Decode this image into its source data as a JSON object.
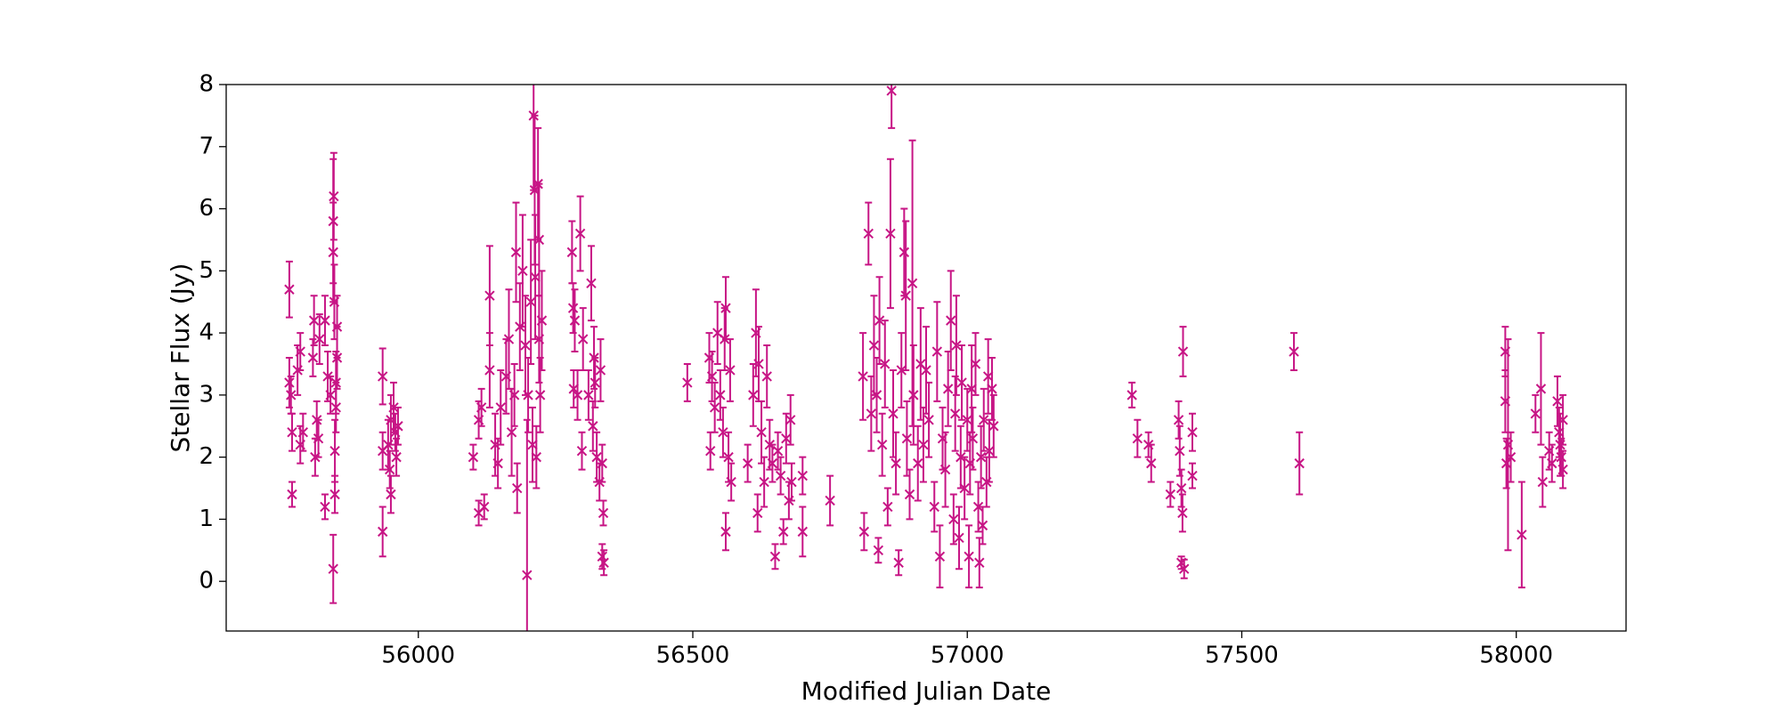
{
  "chart_data": {
    "type": "scatter",
    "xlabel": "Modified Julian Date",
    "ylabel": "Stellar Flux (Jy)",
    "color": "#c71585",
    "marker": "x",
    "grid": false,
    "xlim": [
      55650,
      58200
    ],
    "ylim": [
      -0.8,
      8
    ],
    "xticks": [
      56000,
      56500,
      57000,
      57500,
      58000
    ],
    "yticks": [
      0,
      1,
      2,
      3,
      4,
      5,
      6,
      7,
      8
    ],
    "x": [
      55765,
      55765,
      55768,
      55770,
      55770,
      55780,
      55785,
      55785,
      55790,
      55808,
      55810,
      55812,
      55815,
      55818,
      55820,
      55830,
      55830,
      55835,
      55840,
      55845,
      55846,
      55845,
      55847,
      55848,
      55848,
      55845,
      55850,
      55852,
      55850,
      55852,
      55935,
      55935,
      55935,
      55945,
      55948,
      55950,
      55950,
      55955,
      55958,
      55960,
      55963,
      56100,
      56110,
      56110,
      56115,
      56120,
      56130,
      56130,
      56140,
      56145,
      56150,
      56160,
      56165,
      56170,
      56175,
      56178,
      56180,
      56185,
      56190,
      56195,
      56198,
      56200,
      56205,
      56208,
      56210,
      56212,
      56213,
      56215,
      56218,
      56220,
      56220,
      56222,
      56225,
      56280,
      56282,
      56283,
      56285,
      56290,
      56295,
      56298,
      56300,
      56310,
      56315,
      56318,
      56320,
      56322,
      56325,
      56330,
      56332,
      56335,
      56335,
      56337,
      56338,
      56490,
      56530,
      56532,
      56535,
      56540,
      56545,
      56550,
      56555,
      56558,
      56560,
      56560,
      56565,
      56568,
      56570,
      56600,
      56610,
      56615,
      56618,
      56620,
      56625,
      56630,
      56635,
      56640,
      56645,
      56650,
      56655,
      56660,
      56665,
      56670,
      56675,
      56678,
      56680,
      56700,
      56700,
      56750,
      56810,
      56812,
      56820,
      56825,
      56830,
      56835,
      56838,
      56840,
      56845,
      56850,
      56855,
      56860,
      56862,
      56865,
      56870,
      56875,
      56880,
      56885,
      56888,
      56890,
      56895,
      56900,
      56902,
      56910,
      56915,
      56920,
      56925,
      56930,
      56940,
      56945,
      56950,
      56955,
      56960,
      56965,
      56970,
      56975,
      56978,
      56980,
      56985,
      56988,
      56990,
      56995,
      57000,
      57003,
      57005,
      57008,
      57010,
      57015,
      57020,
      57022,
      57025,
      57028,
      57030,
      57035,
      57038,
      57040,
      57045,
      57048,
      57300,
      57310,
      57330,
      57335,
      57370,
      57385,
      57387,
      57390,
      57392,
      57393,
      57395,
      57390,
      57410,
      57410,
      57595,
      57605,
      57980,
      57980,
      57982,
      57985,
      57990,
      58010,
      58035,
      58045,
      58048,
      58060,
      58065,
      58075,
      58078,
      58080,
      58082,
      58085,
      58085
    ],
    "values": [
      4.7,
      3.2,
      3.0,
      2.4,
      1.4,
      3.4,
      3.7,
      2.2,
      2.4,
      3.6,
      4.2,
      2.0,
      2.6,
      2.3,
      3.9,
      4.2,
      1.2,
      3.3,
      3.0,
      5.8,
      6.2,
      5.3,
      4.5,
      2.1,
      1.4,
      0.2,
      3.2,
      4.1,
      2.8,
      3.6,
      3.3,
      2.1,
      0.8,
      2.2,
      1.8,
      2.6,
      1.4,
      2.8,
      2.4,
      2.0,
      2.5,
      2.0,
      2.6,
      1.1,
      2.8,
      1.2,
      4.6,
      3.4,
      2.2,
      1.9,
      2.8,
      3.3,
      3.9,
      2.4,
      3.0,
      5.3,
      1.5,
      4.1,
      5.0,
      3.8,
      0.1,
      3.0,
      4.5,
      2.2,
      7.5,
      6.3,
      4.9,
      2.0,
      6.4,
      5.5,
      3.9,
      3.0,
      4.2,
      5.3,
      4.4,
      3.1,
      4.2,
      3.0,
      5.6,
      2.1,
      3.9,
      3.0,
      4.8,
      2.5,
      3.6,
      3.2,
      2.0,
      1.6,
      3.4,
      1.9,
      0.4,
      1.1,
      0.3,
      3.2,
      3.6,
      2.1,
      3.3,
      2.8,
      4.0,
      3.0,
      2.4,
      3.9,
      4.4,
      0.8,
      2.0,
      3.4,
      1.6,
      1.9,
      3.0,
      4.0,
      1.1,
      3.5,
      2.4,
      1.6,
      3.3,
      2.2,
      1.9,
      0.4,
      2.1,
      1.7,
      0.8,
      2.3,
      1.3,
      2.6,
      1.6,
      1.7,
      0.8,
      1.3,
      3.3,
      0.8,
      5.6,
      2.7,
      3.8,
      3.0,
      0.5,
      4.2,
      2.2,
      3.5,
      1.2,
      5.6,
      7.9,
      2.7,
      1.9,
      0.3,
      3.4,
      5.3,
      4.6,
      2.3,
      1.4,
      4.8,
      3.0,
      1.9,
      3.5,
      2.2,
      3.4,
      2.6,
      1.2,
      3.7,
      0.4,
      2.3,
      1.8,
      3.1,
      4.2,
      1.0,
      2.7,
      3.8,
      0.7,
      2.0,
      3.2,
      1.5,
      2.6,
      0.4,
      1.9,
      3.1,
      2.3,
      3.5,
      1.2,
      0.3,
      2.0,
      0.9,
      2.6,
      1.6,
      3.3,
      2.1,
      3.1,
      2.5,
      3.0,
      2.3,
      2.2,
      1.9,
      1.4,
      2.6,
      2.1,
      1.5,
      1.1,
      3.7,
      0.2,
      0.3,
      2.4,
      1.7,
      3.7,
      1.9,
      3.7,
      2.9,
      1.9,
      2.2,
      2.0,
      0.75,
      2.7,
      3.1,
      1.6,
      2.1,
      1.9,
      2.9,
      2.4,
      2.2,
      2.0,
      2.6,
      1.8
    ],
    "errors": [
      0.45,
      0.4,
      0.3,
      0.3,
      0.2,
      0.4,
      0.3,
      0.3,
      0.3,
      0.3,
      0.4,
      0.3,
      0.3,
      0.3,
      0.4,
      0.4,
      0.2,
      0.4,
      0.3,
      1.0,
      0.7,
      0.8,
      0.6,
      0.5,
      0.3,
      0.55,
      0.5,
      0.5,
      0.4,
      0.5,
      0.45,
      0.3,
      0.4,
      0.4,
      0.3,
      0.4,
      0.3,
      0.4,
      0.3,
      0.3,
      0.3,
      0.2,
      0.3,
      0.2,
      0.3,
      0.2,
      0.8,
      0.6,
      0.5,
      0.4,
      0.6,
      0.6,
      0.8,
      0.7,
      0.5,
      0.8,
      0.4,
      0.7,
      0.9,
      0.8,
      2.5,
      0.6,
      1.0,
      0.6,
      1.2,
      1.2,
      1.0,
      0.5,
      0.9,
      0.9,
      0.7,
      0.6,
      0.8,
      0.5,
      0.4,
      0.3,
      0.5,
      0.4,
      0.6,
      0.3,
      0.5,
      0.4,
      0.6,
      0.4,
      0.5,
      0.4,
      0.4,
      0.3,
      0.5,
      0.3,
      0.2,
      0.2,
      0.2,
      0.3,
      0.4,
      0.3,
      0.4,
      0.4,
      0.5,
      0.4,
      0.4,
      0.5,
      0.5,
      0.3,
      0.4,
      0.5,
      0.3,
      0.3,
      0.5,
      0.7,
      0.3,
      0.6,
      0.5,
      0.4,
      0.5,
      0.4,
      0.3,
      0.2,
      0.3,
      0.3,
      0.2,
      0.4,
      0.3,
      0.4,
      0.3,
      0.3,
      0.4,
      0.4,
      0.7,
      0.3,
      0.5,
      0.6,
      0.8,
      0.6,
      0.2,
      0.7,
      0.5,
      0.7,
      0.3,
      1.2,
      0.6,
      0.7,
      0.5,
      0.2,
      0.6,
      0.7,
      1.2,
      0.6,
      0.4,
      2.3,
      0.8,
      0.6,
      0.9,
      0.6,
      0.7,
      0.6,
      0.4,
      0.8,
      0.5,
      0.5,
      0.6,
      0.6,
      0.8,
      0.4,
      0.6,
      0.8,
      0.5,
      0.5,
      0.6,
      0.5,
      0.5,
      0.5,
      0.5,
      0.7,
      0.5,
      0.5,
      0.4,
      0.4,
      0.5,
      0.3,
      0.5,
      0.4,
      0.6,
      0.5,
      0.5,
      0.5,
      0.2,
      0.3,
      0.2,
      0.3,
      0.2,
      0.3,
      0.4,
      0.3,
      0.3,
      0.4,
      0.15,
      0.1,
      0.3,
      0.2,
      0.3,
      0.5,
      0.4,
      0.5,
      0.4,
      1.7,
      0.4,
      0.85,
      0.3,
      0.9,
      0.4,
      0.3,
      0.3,
      0.4,
      0.4,
      0.5,
      0.3,
      0.4,
      0.3
    ]
  }
}
